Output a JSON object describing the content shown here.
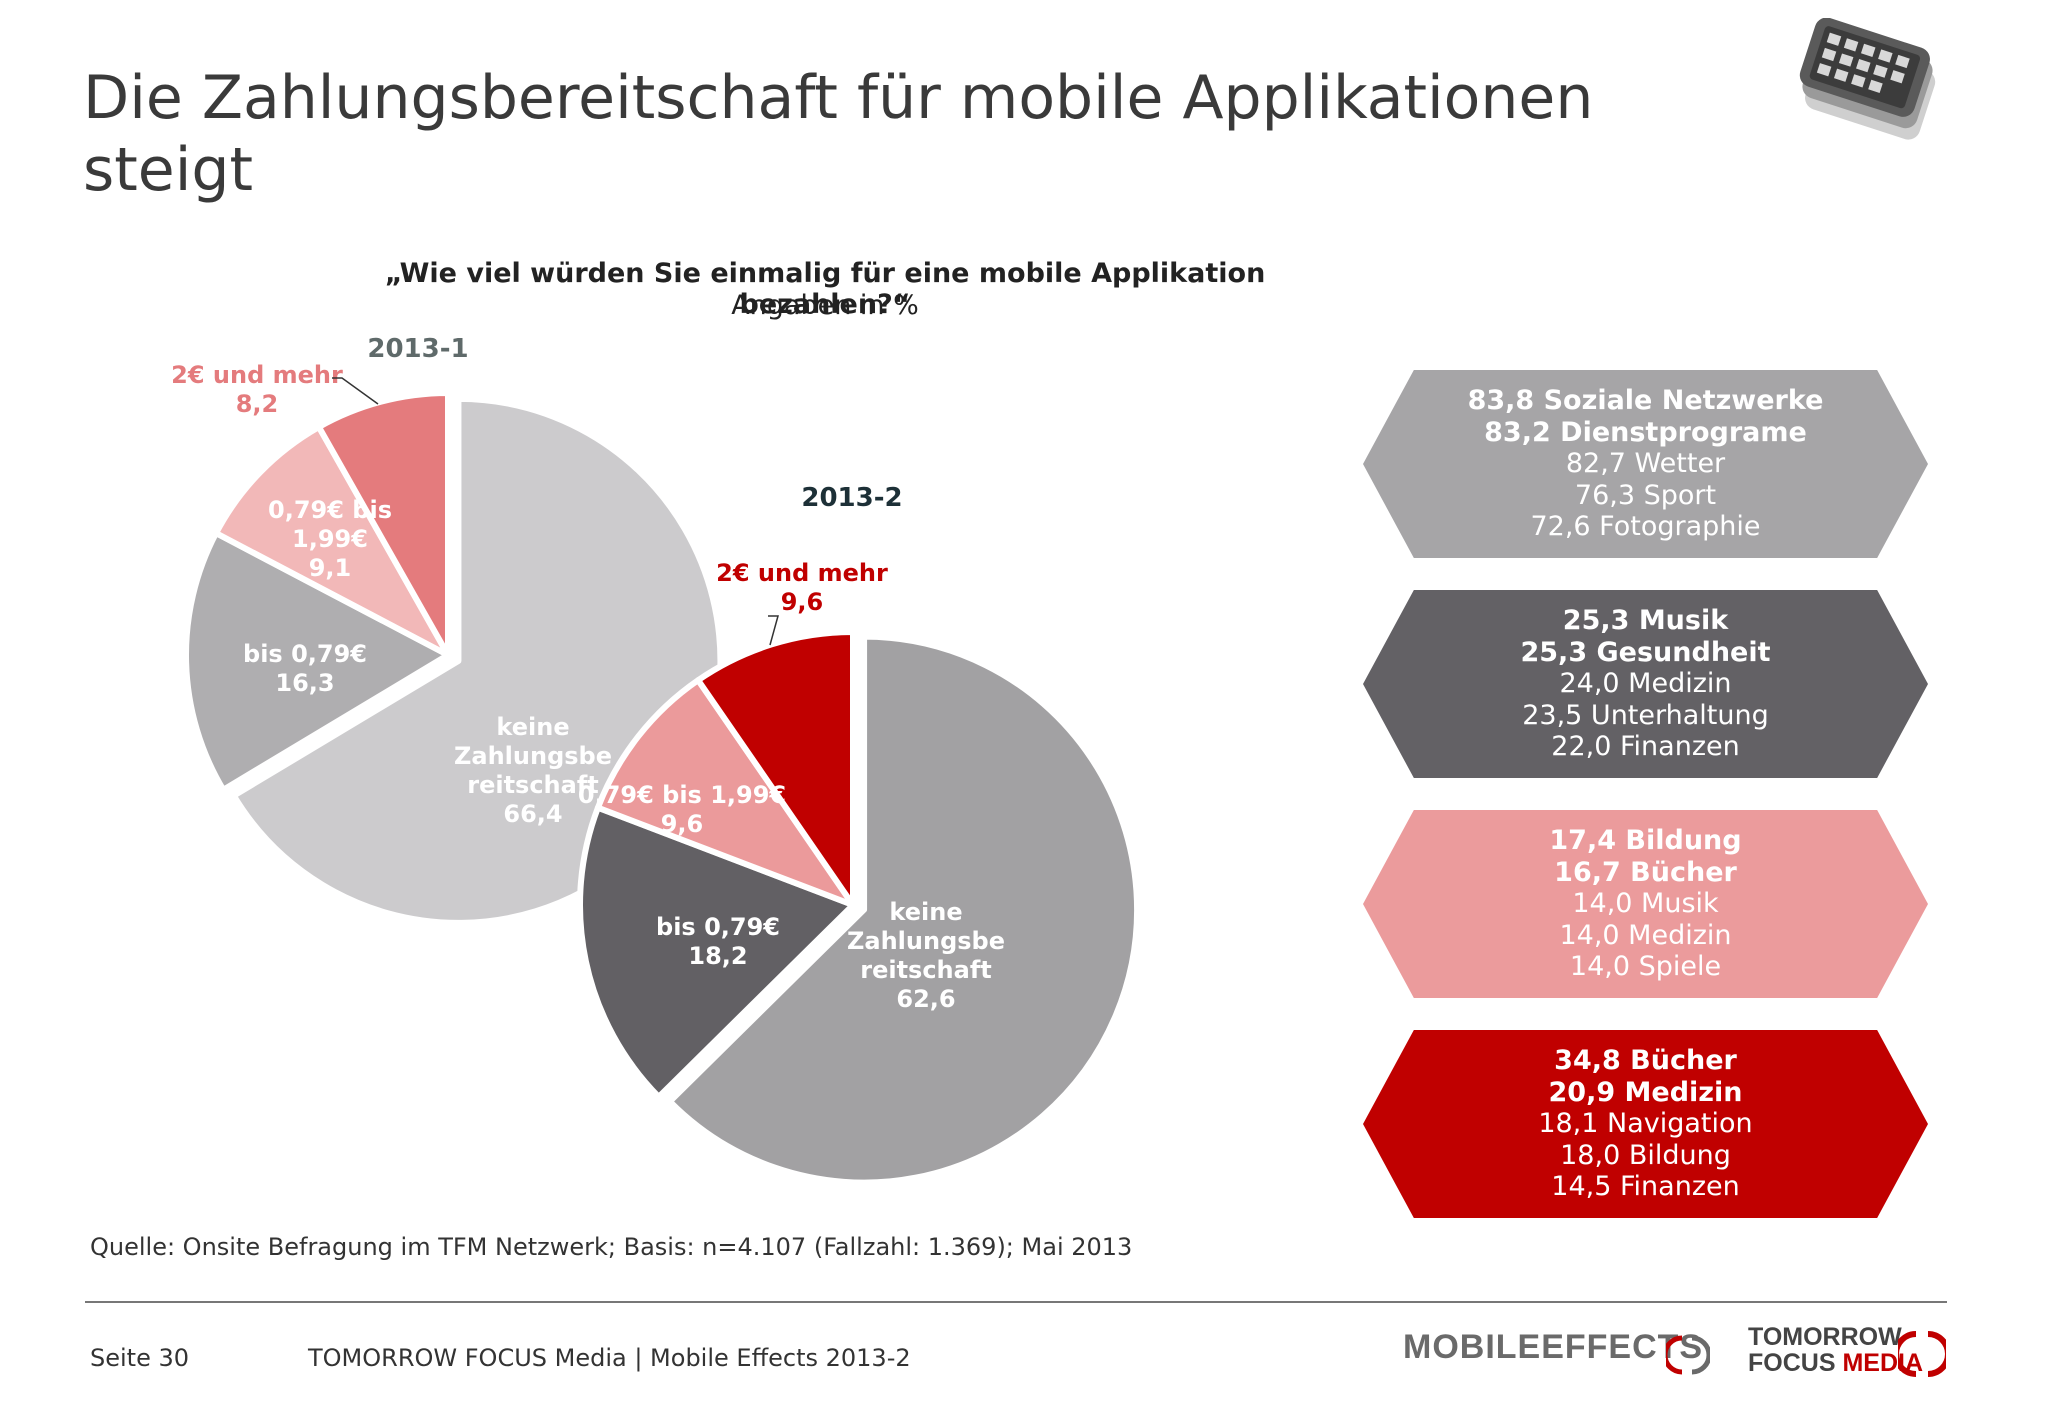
{
  "title_line1": "Die Zahlungsbereitschaft für mobile Applikationen",
  "title_line2": "steigt",
  "question": "„Wie viel würden Sie einmalig für eine mobile Applikation bezahlen?“",
  "unit": "Angaben in %",
  "chart_data": [
    {
      "type": "pie",
      "title": "2013-1",
      "slices": [
        {
          "label": "keine Zahlungsbereitschaft",
          "value": 66.4,
          "color": "#cccbcd",
          "label_lines": [
            "keine",
            "Zahlungsbe",
            "reitschaft",
            "66,4"
          ]
        },
        {
          "label": "bis 0,79€",
          "value": 16.3,
          "color": "#afaeb0",
          "label_lines": [
            "bis 0,79€",
            "16,3"
          ]
        },
        {
          "label": "0,79€ bis 1,99€",
          "value": 9.1,
          "color": "#f2b8b8",
          "label_lines": [
            "0,79€ bis",
            "1,99€",
            "9,1"
          ]
        },
        {
          "label": "2€ und mehr",
          "value": 8.2,
          "color": "#e47b7d",
          "label_lines": [
            "2€ und mehr",
            "8,2"
          ]
        }
      ]
    },
    {
      "type": "pie",
      "title": "2013-2",
      "slices": [
        {
          "label": "keine Zahlungsbereitschaft",
          "value": 62.6,
          "color": "#a2a1a3",
          "label_lines": [
            "keine",
            "Zahlungsbe",
            "reitschaft",
            "62,6"
          ]
        },
        {
          "label": "bis 0,79€",
          "value": 18.2,
          "color": "#626064",
          "label_lines": [
            "bis 0,79€",
            "18,2"
          ]
        },
        {
          "label": "0,79€ bis 1,99€",
          "value": 9.6,
          "color": "#eb9a9b",
          "label_lines": [
            "0,79€ bis 1,99€",
            "9,6"
          ]
        },
        {
          "label": "2€ und mehr",
          "value": 9.6,
          "color": "#c00000",
          "label_lines": [
            "2€ und mehr",
            "9,6"
          ]
        }
      ]
    }
  ],
  "categories_boxes": [
    {
      "color": "#a6a5a7",
      "bold": [
        "83,8 Soziale Netzwerke",
        "83,2 Dienstprograme"
      ],
      "normal": [
        "82,7 Wetter",
        "76,3 Sport",
        "72,6 Fotographie"
      ]
    },
    {
      "color": "#636165",
      "bold": [
        "25,3 Musik",
        "25,3 Gesundheit"
      ],
      "normal": [
        "24,0 Medizin",
        "23,5 Unterhaltung",
        "22,0 Finanzen"
      ]
    },
    {
      "color": "#eb9b9c",
      "bold": [
        "17,4 Bildung",
        "16,7 Bücher"
      ],
      "normal": [
        "14,0 Musik",
        "14,0 Medizin",
        "14,0 Spiele"
      ]
    },
    {
      "color": "#c00000",
      "bold": [
        "34,8 Bücher",
        "20,9 Medizin"
      ],
      "normal": [
        "18,1 Navigation",
        "18,0 Bildung",
        "14,5 Finanzen"
      ]
    }
  ],
  "source": "Quelle: Onsite Befragung im TFM Netzwerk; Basis: n=4.107 (Fallzahl: 1.369); Mai 2013",
  "footer": {
    "page": "Seite 30",
    "text": "TOMORROW FOCUS Media | Mobile Effects 2013-2",
    "logo_mobile": "MOBILE",
    "logo_effects": "EFFECTS",
    "logo_tomorrow": "TOMORROW",
    "logo_focus": "FOCUS",
    "logo_media": "MEDIA"
  }
}
